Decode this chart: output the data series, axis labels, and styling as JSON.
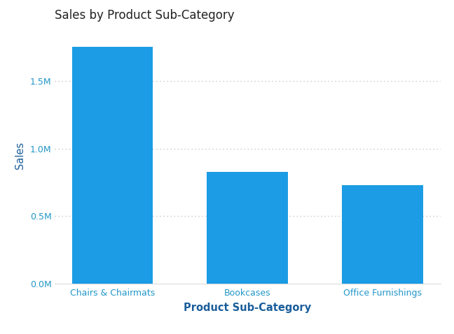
{
  "title": "Sales by Product Sub-Category",
  "categories": [
    "Chairs & Chairmats",
    "Bookcases",
    "Office Furnishings"
  ],
  "values": [
    1750000,
    830000,
    730000
  ],
  "bar_color": "#1B9CE4",
  "xlabel": "Product Sub-Category",
  "ylabel": "Sales",
  "ylim": [
    0,
    1900000
  ],
  "yticks": [
    0,
    500000,
    1000000,
    1500000
  ],
  "ytick_labels": [
    "0.0M",
    "0.5M",
    "1.0M",
    "1.5M"
  ],
  "background_color": "#FFFFFF",
  "title_color": "#222222",
  "axis_label_color": "#1B5E9B",
  "tick_color": "#2196C8",
  "grid_color": "#BBBBBB",
  "title_fontsize": 12,
  "axis_label_fontsize": 10.5,
  "tick_fontsize": 9
}
